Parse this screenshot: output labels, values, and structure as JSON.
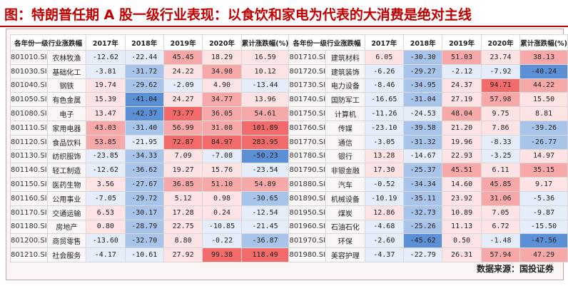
{
  "title": "图：特朗普任期 A 股一级行业表现：以食饮和家电为代表的大消费是绝对主线",
  "source": "数据来源：国投证券",
  "headers": [
    "各年份一级行业涨跌幅",
    "2017年",
    "2018年",
    "2019年",
    "2020年",
    "累计涨跌幅(%)"
  ],
  "colors": {
    "pos_strong": "#f26a6a",
    "pos_mid": "#f7a9a9",
    "pos_light": "#fde3e3",
    "neg_strong": "#5b8fd6",
    "neg_mid": "#a9c4ea",
    "neg_light": "#e4edf9"
  },
  "left_rows": [
    {
      "code": "801010.SI",
      "name": "农林牧渔",
      "values": [
        "-12.62",
        "-22.44",
        "45.45",
        "18.29",
        "16.59"
      ]
    },
    {
      "code": "801030.SI",
      "name": "基础化工",
      "values": [
        "-3.81",
        "-31.72",
        "24.22",
        "34.98",
        "10.12"
      ]
    },
    {
      "code": "801040.SI",
      "name": "钢铁",
      "values": [
        "19.74",
        "-29.62",
        "-2.09",
        "4.90",
        "-13.44"
      ]
    },
    {
      "code": "801050.SI",
      "name": "有色金属",
      "values": [
        "15.39",
        "-41.04",
        "24.27",
        "34.77",
        "13.96"
      ]
    },
    {
      "code": "801080.SI",
      "name": "电子",
      "values": [
        "13.47",
        "-42.37",
        "73.77",
        "36.05",
        "54.61"
      ]
    },
    {
      "code": "801110.SI",
      "name": "家用电器",
      "values": [
        "43.03",
        "-31.40",
        "56.99",
        "31.08",
        "101.89"
      ]
    },
    {
      "code": "801120.SI",
      "name": "食品饮料",
      "values": [
        "53.85",
        "-21.95",
        "72.87",
        "84.97",
        "283.95"
      ]
    },
    {
      "code": "801130.SI",
      "name": "纺织服饰",
      "values": [
        "-23.85",
        "-34.33",
        "7.09",
        "-7.08",
        "-50.23"
      ]
    },
    {
      "code": "801140.SI",
      "name": "轻工制造",
      "values": [
        "-12.62",
        "-36.62",
        "19.27",
        "15.76",
        "-23.54"
      ]
    },
    {
      "code": "801150.SI",
      "name": "医药生物",
      "values": [
        "3.56",
        "-27.67",
        "36.85",
        "51.10",
        "54.89"
      ]
    },
    {
      "code": "801160.SI",
      "name": "公用事业",
      "values": [
        "-7.05",
        "-29.72",
        "5.12",
        "0.98",
        "-30.65"
      ]
    },
    {
      "code": "801170.SI",
      "name": "交通运输",
      "values": [
        "6.53",
        "-30.17",
        "17.28",
        "0.24",
        "-12.54"
      ]
    },
    {
      "code": "801180.SI",
      "name": "房地产",
      "values": [
        "0.80",
        "-28.79",
        "22.75",
        "-10.85",
        "-21.45"
      ]
    },
    {
      "code": "801200.SI",
      "name": "商贸零售",
      "values": [
        "-13.60",
        "-32.70",
        "8.80",
        "-0.22",
        "-36.87"
      ]
    },
    {
      "code": "801210.SI",
      "name": "社会服务",
      "values": [
        "-4.17",
        "-10.61",
        "27.92",
        "99.38",
        "118.49"
      ]
    }
  ],
  "right_rows": [
    {
      "code": "801710.SI",
      "name": "建筑材料",
      "values": [
        "6.05",
        "-30.30",
        "51.03",
        "23.74",
        "38.13"
      ]
    },
    {
      "code": "801720.SI",
      "name": "建筑装饰",
      "values": [
        "-6.26",
        "-29.27",
        "-2.12",
        "-7.92",
        "-40.24"
      ]
    },
    {
      "code": "801730.SI",
      "name": "电力设备",
      "values": [
        "-8.46",
        "-34.95",
        "24.37",
        "94.71",
        "44.22"
      ]
    },
    {
      "code": "801740.SI",
      "name": "国防军工",
      "values": [
        "-16.65",
        "-31.04",
        "27.19",
        "57.98",
        "15.50"
      ]
    },
    {
      "code": "801750.SI",
      "name": "计算机",
      "values": [
        "-11.26",
        "-24.53",
        "48.04",
        "9.75",
        "8.81"
      ]
    },
    {
      "code": "801760.SI",
      "name": "传媒",
      "values": [
        "-23.10",
        "-39.58",
        "21.20",
        "7.86",
        "-39.26"
      ]
    },
    {
      "code": "801770.SI",
      "name": "通信",
      "values": [
        "-3.05",
        "-31.32",
        "19.96",
        "-8.33",
        "-26.77"
      ]
    },
    {
      "code": "801780.SI",
      "name": "银行",
      "values": [
        "13.28",
        "-14.67",
        "22.93",
        "-3.25",
        "14.97"
      ]
    },
    {
      "code": "801790.SI",
      "name": "非银金融",
      "values": [
        "17.30",
        "-25.37",
        "45.51",
        "6.11",
        "35.15"
      ]
    },
    {
      "code": "801880.SI",
      "name": "汽车",
      "values": [
        "-0.52",
        "-34.34",
        "14.60",
        "45.85",
        "9.17"
      ]
    },
    {
      "code": "801890.SI",
      "name": "机械设备",
      "values": [
        "-10.19",
        "-35.11",
        "23.92",
        "31.06",
        "-5.36"
      ]
    },
    {
      "code": "801950.SI",
      "name": "煤炭",
      "values": [
        "12.86",
        "-32.73",
        "10.89",
        "7.05",
        "-9.87"
      ]
    },
    {
      "code": "801960.SI",
      "name": "石油石化",
      "values": [
        "-4.68",
        "-25.26",
        "11.13",
        "6.72",
        "-15.50"
      ]
    },
    {
      "code": "801970.SI",
      "name": "环保",
      "values": [
        "-2.60",
        "-45.62",
        "0.50",
        "-1.48",
        "-47.56"
      ]
    },
    {
      "code": "801980.SI",
      "name": "美容护理",
      "values": [
        "-4.37",
        "-22.79",
        "26.31",
        "57.94",
        "47.29"
      ]
    }
  ]
}
